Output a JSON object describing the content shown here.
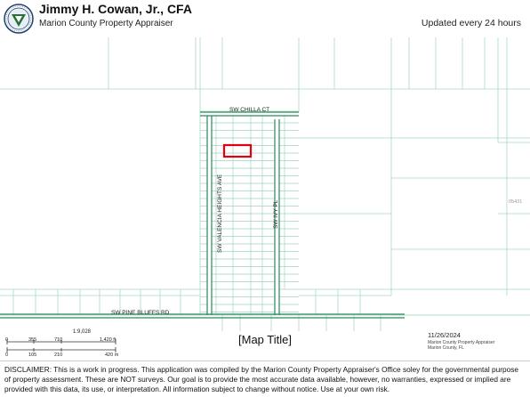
{
  "header": {
    "title": "Jimmy H. Cowan, Jr., CFA",
    "subtitle": "Marion County Property Appraiser",
    "updated": "Updated every 24 hours",
    "seal_icon": "county-seal-logo"
  },
  "map": {
    "roads": {
      "top": "SW CHILLA CT",
      "left": "SW VALENCIA HEIGHTS AVE",
      "center": "SW IVY PL",
      "bottom": "SW PINE BLUFFS RD"
    },
    "parcel_label_right": "05431",
    "highlight_color": "#e5000f",
    "road_color": "#2a8a5c",
    "parcel_line_color": "#9fd3c1"
  },
  "scale": {
    "ratio": "1:9,028",
    "feet_ticks": [
      "0",
      "355",
      "710",
      "1,420 ft"
    ],
    "meter_ticks": [
      "0",
      "105",
      "210",
      "420 m"
    ]
  },
  "footer": {
    "map_title": "[Map Title]",
    "date": "11/26/2024",
    "credit_line1": "Marion County Property Appraiser",
    "credit_line2": "Marion County, FL"
  },
  "disclaimer": "DISCLAIMER: This is a work in progress. This application was compiled by the Marion County Property Appraiser's Office soley for the governmental purpose of property assessment. These are NOT surveys. Our goal is to provide the most accurate data available, however, no warranties, expressed or implied are provided with this data, its use, or interpretation. All information subject to change without notice. Use at your own risk."
}
